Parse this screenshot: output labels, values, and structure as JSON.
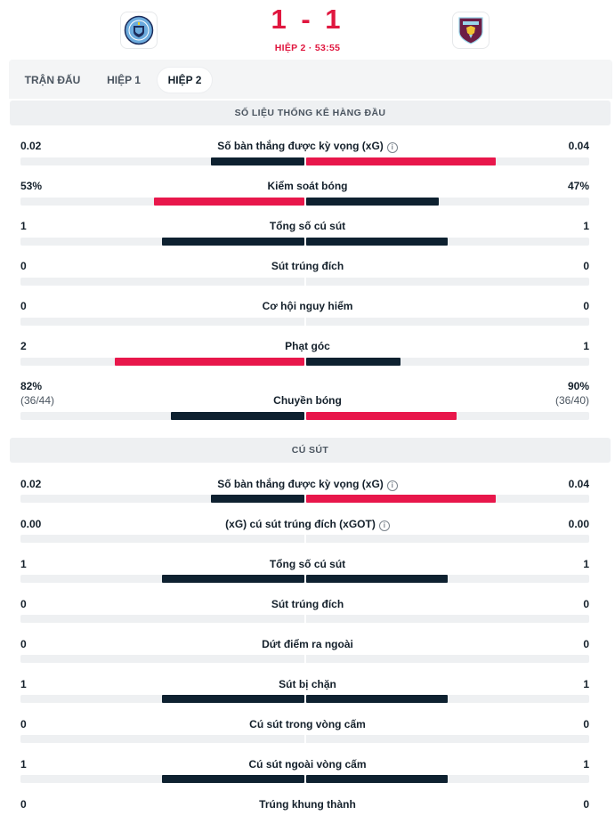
{
  "match": {
    "home_team": "Manchester City",
    "away_team": "Burnley",
    "score": "1 - 1",
    "period": "HIỆP 2 · 53:55",
    "colors": {
      "accent": "#e0173f",
      "dark_bar": "#0e2130",
      "red_bar": "#e8174b",
      "track": "#eef0f2"
    }
  },
  "tabs": [
    {
      "label": "TRẬN ĐẤU",
      "active": false
    },
    {
      "label": "HIỆP 1",
      "active": false
    },
    {
      "label": "HIỆP 2",
      "active": true
    }
  ],
  "sections": [
    {
      "title": "SỐ LIỆU THỐNG KÊ HÀNG ĐẦU",
      "stats": [
        {
          "label": "Số bàn thắng được kỳ vọng (xG)",
          "info": true,
          "home": "0.02",
          "away": "0.04",
          "home_share": 0.33,
          "away_share": 0.67,
          "home_color": "dark",
          "away_color": "red"
        },
        {
          "label": "Kiểm soát bóng",
          "info": false,
          "home": "53%",
          "away": "47%",
          "home_share": 0.53,
          "away_share": 0.47,
          "home_color": "red",
          "away_color": "dark"
        },
        {
          "label": "Tổng số cú sút",
          "info": false,
          "home": "1",
          "away": "1",
          "home_share": 0.5,
          "away_share": 0.5,
          "home_color": "dark",
          "away_color": "dark"
        },
        {
          "label": "Sút trúng đích",
          "info": false,
          "home": "0",
          "away": "0",
          "home_share": 0,
          "away_share": 0,
          "home_color": "dark",
          "away_color": "dark"
        },
        {
          "label": "Cơ hội nguy hiểm",
          "info": false,
          "home": "0",
          "away": "0",
          "home_share": 0,
          "away_share": 0,
          "home_color": "dark",
          "away_color": "dark"
        },
        {
          "label": "Phạt góc",
          "info": false,
          "home": "2",
          "away": "1",
          "home_share": 0.667,
          "away_share": 0.333,
          "home_color": "red",
          "away_color": "dark"
        },
        {
          "label": "Chuyền bóng",
          "info": false,
          "home": "82%",
          "away": "90%",
          "home_sub": "(36/44)",
          "away_sub": "(36/40)",
          "home_share": 0.47,
          "away_share": 0.53,
          "home_color": "dark",
          "away_color": "red"
        }
      ]
    },
    {
      "title": "CÚ SÚT",
      "stats": [
        {
          "label": "Số bàn thắng được kỳ vọng (xG)",
          "info": true,
          "home": "0.02",
          "away": "0.04",
          "home_share": 0.33,
          "away_share": 0.67,
          "home_color": "dark",
          "away_color": "red"
        },
        {
          "label": "(xG) cú sút trúng đích (xGOT)",
          "info": true,
          "home": "0.00",
          "away": "0.00",
          "home_share": 0,
          "away_share": 0,
          "home_color": "dark",
          "away_color": "dark"
        },
        {
          "label": "Tổng số cú sút",
          "info": false,
          "home": "1",
          "away": "1",
          "home_share": 0.5,
          "away_share": 0.5,
          "home_color": "dark",
          "away_color": "dark"
        },
        {
          "label": "Sút trúng đích",
          "info": false,
          "home": "0",
          "away": "0",
          "home_share": 0,
          "away_share": 0,
          "home_color": "dark",
          "away_color": "dark"
        },
        {
          "label": "Dứt điểm ra ngoài",
          "info": false,
          "home": "0",
          "away": "0",
          "home_share": 0,
          "away_share": 0,
          "home_color": "dark",
          "away_color": "dark"
        },
        {
          "label": "Sút bị chặn",
          "info": false,
          "home": "1",
          "away": "1",
          "home_share": 0.5,
          "away_share": 0.5,
          "home_color": "dark",
          "away_color": "dark"
        },
        {
          "label": "Cú sút trong vòng cấm",
          "info": false,
          "home": "0",
          "away": "0",
          "home_share": 0,
          "away_share": 0,
          "home_color": "dark",
          "away_color": "dark"
        },
        {
          "label": "Cú sút ngoài vòng cấm",
          "info": false,
          "home": "1",
          "away": "1",
          "home_share": 0.5,
          "away_share": 0.5,
          "home_color": "dark",
          "away_color": "dark"
        },
        {
          "label": "Trúng khung thành",
          "info": false,
          "home": "0",
          "away": "0",
          "home_share": 0,
          "away_share": 0,
          "home_color": "dark",
          "away_color": "dark"
        }
      ]
    }
  ]
}
